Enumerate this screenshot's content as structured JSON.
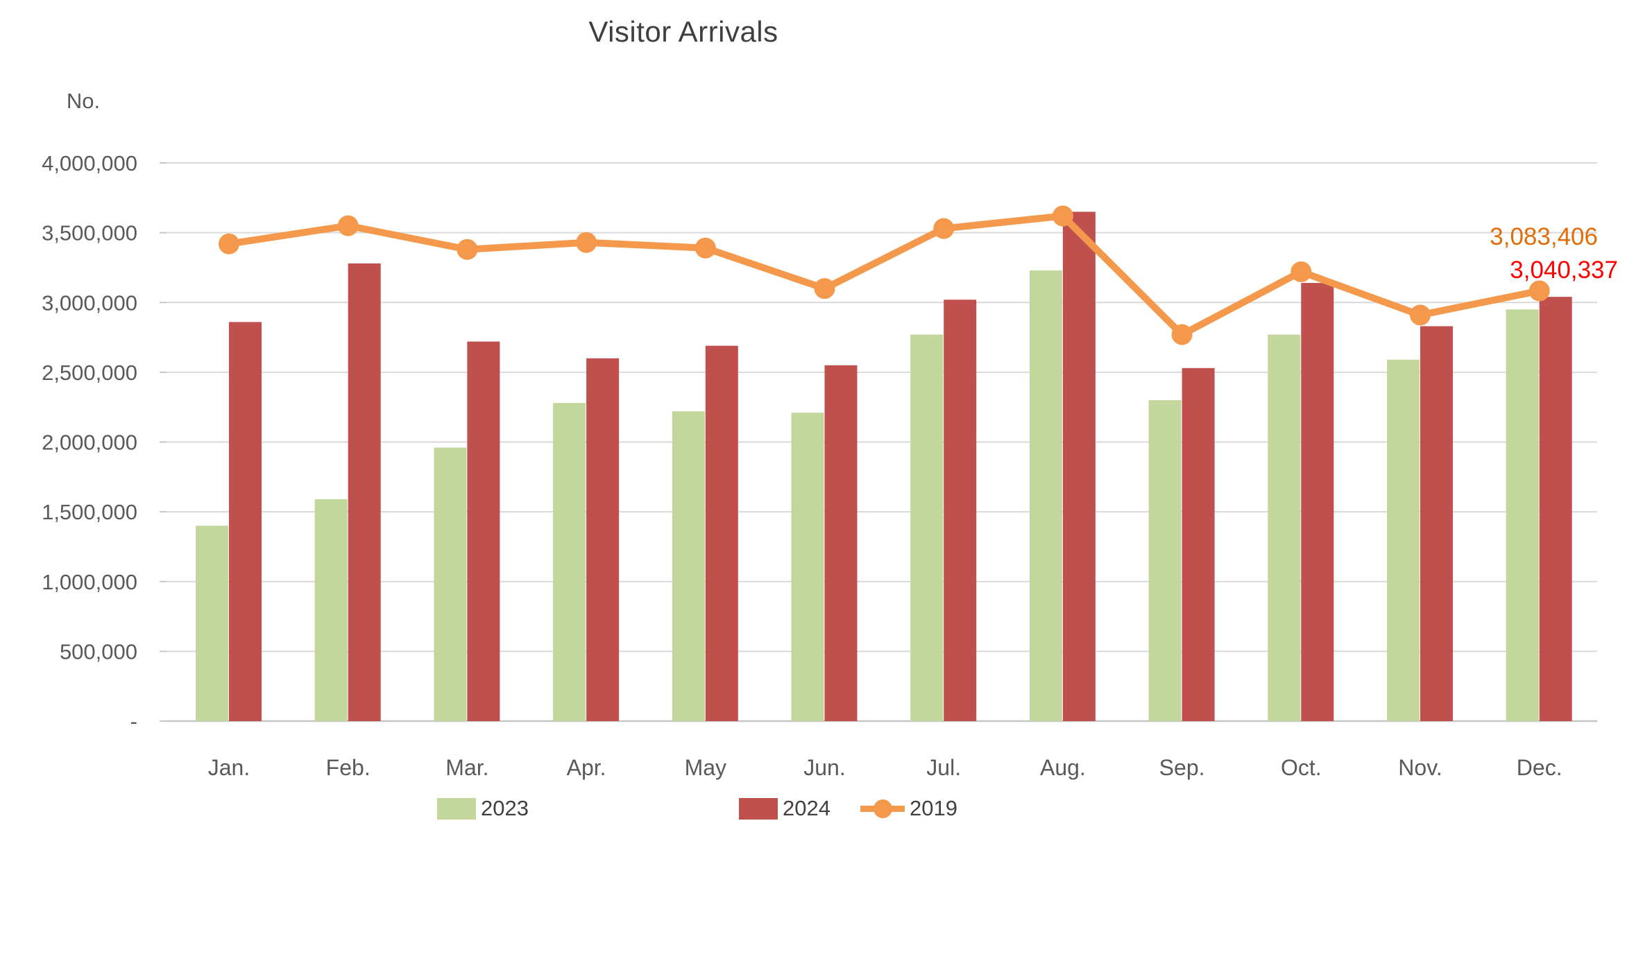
{
  "chart_data": {
    "type": "bar+line",
    "title": "Visitor Arrivals",
    "y_axis": {
      "unit_label": "No.",
      "min": 0,
      "max": 4000000,
      "tick_step": 500000,
      "tick_labels_top_to_bottom": [
        "4,000,000",
        "3,500,000",
        "3,000,000",
        "2,500,000",
        "2,000,000",
        "1,500,000",
        "1,000,000",
        "500,000",
        "-"
      ]
    },
    "categories": [
      "Jan.",
      "Feb.",
      "Mar.",
      "Apr.",
      "May",
      "Jun.",
      "Jul.",
      "Aug.",
      "Sep.",
      "Oct.",
      "Nov.",
      "Dec."
    ],
    "series": [
      {
        "name": "2023",
        "type": "bar",
        "color": "#C3D69B",
        "values": [
          1400000,
          1590000,
          1960000,
          2280000,
          2220000,
          2210000,
          2770000,
          3230000,
          2300000,
          2770000,
          2590000,
          2950000
        ]
      },
      {
        "name": "2024",
        "type": "bar",
        "color": "#C0504D",
        "values": [
          2860000,
          3280000,
          2720000,
          2600000,
          2690000,
          2550000,
          3020000,
          3650000,
          2530000,
          3140000,
          2830000,
          3040337
        ]
      },
      {
        "name": "2019",
        "type": "line",
        "color": "#F4994C",
        "values": [
          3420000,
          3550000,
          3380000,
          3430000,
          3390000,
          3100000,
          3530000,
          3620000,
          2770000,
          3220000,
          2910000,
          3083406
        ]
      }
    ],
    "annotations": [
      {
        "text": "3,083,406",
        "series": "2019",
        "category": "Dec.",
        "color": "#E36C09"
      },
      {
        "text": "3,040,337",
        "series": "2024",
        "category": "Dec.",
        "color": "#FE0000"
      }
    ],
    "legend": {
      "position": "bottom",
      "items": [
        "2023",
        "2024",
        "2019"
      ]
    },
    "grid": "horizontal",
    "colors": {
      "gridline": "#D9D9D9",
      "axis_line": "#C6C6C6",
      "tick_label": "#595959",
      "title_text": "#3F3F3F",
      "legend_text": "#404040",
      "background": "#FFFFFF"
    }
  }
}
